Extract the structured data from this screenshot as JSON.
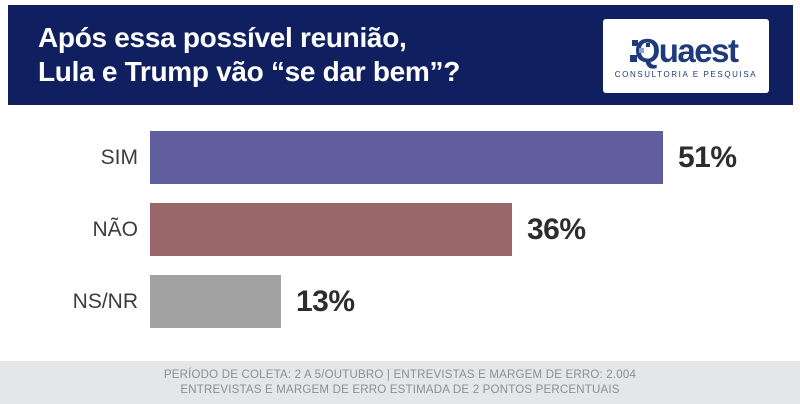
{
  "header": {
    "title_line1": "Após essa possível reunião,",
    "title_line2": "Lula e Trump vão “se dar bem”?",
    "logo": {
      "brand": "Quaest",
      "tagline": "CONSULTORIA E PESQUISA"
    }
  },
  "chart_data": {
    "type": "bar",
    "orientation": "horizontal",
    "title": "Após essa possível reunião, Lula e Trump vão “se dar bem”?",
    "categories": [
      "SIM",
      "NÃO",
      "NS/NR"
    ],
    "values": [
      51,
      36,
      13
    ],
    "value_labels": [
      "51%",
      "36%",
      "13%"
    ],
    "unit": "%",
    "xlim": [
      0,
      100
    ],
    "bar_colors": [
      "#605e9f",
      "#99666a",
      "#a2a2a2"
    ],
    "legend": false,
    "grid": false
  },
  "footer": {
    "line1": "PERÍODO DE COLETA: 2 A 5/OUTUBRO | ENTREVISTAS E MARGEM DE ERRO: 2.004",
    "line2": "ENTREVISTAS E MARGEM DE ERRO ESTIMADA DE 2 PONTOS PERCENTUAIS"
  },
  "colors": {
    "header_bg": "#101f60",
    "title_text": "#ffffff",
    "logo_navy": "#1f3a7d",
    "category_text": "#3c3c3c",
    "value_text": "#2d2d2d",
    "footer_bg": "#e4e6e8",
    "footer_text": "#8b9095"
  }
}
